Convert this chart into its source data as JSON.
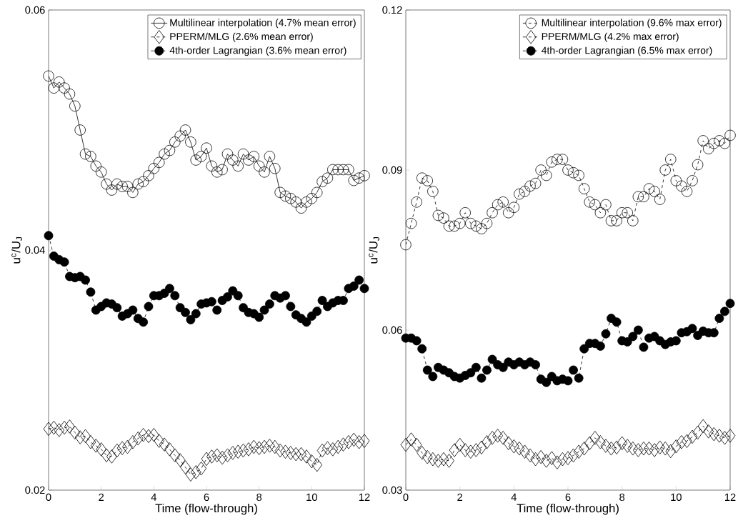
{
  "chart_data": [
    {
      "type": "line",
      "xlabel": "Time (flow-through)",
      "ylabel": "u$^{c}$/U$_{J}$",
      "x": [
        0,
        0.2,
        0.4,
        0.6,
        0.8,
        1.0,
        1.2,
        1.4,
        1.6,
        1.8,
        2.0,
        2.2,
        2.4,
        2.6,
        2.8,
        3.0,
        3.2,
        3.4,
        3.6,
        3.8,
        4.0,
        4.2,
        4.4,
        4.6,
        4.8,
        5.0,
        5.2,
        5.4,
        5.6,
        5.8,
        6.0,
        6.2,
        6.4,
        6.6,
        6.8,
        7.0,
        7.2,
        7.4,
        7.6,
        7.8,
        8.0,
        8.2,
        8.4,
        8.6,
        8.8,
        9.0,
        9.2,
        9.4,
        9.6,
        9.8,
        10.0,
        10.2,
        10.4,
        10.6,
        10.8,
        11.0,
        11.2,
        11.4,
        11.6,
        11.8,
        12.0
      ],
      "xlim": [
        0,
        12
      ],
      "xticks": [
        0,
        2,
        4,
        6,
        8,
        10,
        12
      ],
      "ylim": [
        0.02,
        0.06
      ],
      "yticks": [
        0.02,
        0.04,
        0.06
      ],
      "legend": "top right",
      "grid": false,
      "series": [
        {
          "name": "Multilinear interpolation (4.7% mean error)",
          "color": "#000000",
          "marker": "circle",
          "line_style": "solid",
          "values": [
            0.0545,
            0.0535,
            0.054,
            0.0535,
            0.053,
            0.052,
            0.05,
            0.048,
            0.0478,
            0.047,
            0.0465,
            0.0455,
            0.045,
            0.0455,
            0.0453,
            0.0453,
            0.0448,
            0.0455,
            0.0457,
            0.0462,
            0.0468,
            0.0473,
            0.048,
            0.0483,
            0.049,
            0.0495,
            0.05,
            0.049,
            0.0475,
            0.0478,
            0.0485,
            0.047,
            0.0465,
            0.0467,
            0.048,
            0.0475,
            0.047,
            0.048,
            0.0475,
            0.0478,
            0.047,
            0.0465,
            0.0478,
            0.0468,
            0.0448,
            0.0445,
            0.0443,
            0.044,
            0.0435,
            0.044,
            0.0443,
            0.0448,
            0.0457,
            0.046,
            0.0467,
            0.0467,
            0.0467,
            0.0467,
            0.0458,
            0.046,
            0.0462
          ]
        },
        {
          "name": "PPERM/MLG (2.6% mean error)",
          "color": "#000000",
          "marker": "diamond",
          "line_style": "dashed",
          "values": [
            0.0251,
            0.0252,
            0.025,
            0.0252,
            0.0253,
            0.0248,
            0.0244,
            0.0245,
            0.024,
            0.0237,
            0.0234,
            0.0229,
            0.0228,
            0.0233,
            0.0235,
            0.0236,
            0.024,
            0.0243,
            0.0246,
            0.0245,
            0.0246,
            0.0241,
            0.0238,
            0.0234,
            0.0229,
            0.0225,
            0.0219,
            0.0213,
            0.0215,
            0.0218,
            0.0226,
            0.0228,
            0.0229,
            0.0227,
            0.0229,
            0.0231,
            0.0232,
            0.0233,
            0.0234,
            0.0236,
            0.0235,
            0.0236,
            0.0237,
            0.0236,
            0.0233,
            0.0232,
            0.0231,
            0.023,
            0.023,
            0.0228,
            0.0224,
            0.0221,
            0.0233,
            0.0235,
            0.0234,
            0.0236,
            0.0238,
            0.024,
            0.0242,
            0.024,
            0.0241
          ]
        },
        {
          "name": "4th-order Lagrangian (3.6% mean error)",
          "color": "#000000",
          "marker": "filled circle",
          "line_style": "dashed",
          "values": [
            0.0412,
            0.0395,
            0.0392,
            0.039,
            0.0378,
            0.0377,
            0.0378,
            0.0375,
            0.0365,
            0.035,
            0.0353,
            0.0356,
            0.0355,
            0.0352,
            0.0345,
            0.0347,
            0.035,
            0.0343,
            0.034,
            0.0353,
            0.0362,
            0.0362,
            0.0364,
            0.0368,
            0.0362,
            0.0352,
            0.0348,
            0.0342,
            0.0347,
            0.0355,
            0.0356,
            0.0357,
            0.035,
            0.0358,
            0.0361,
            0.0366,
            0.0362,
            0.0352,
            0.0348,
            0.0347,
            0.0344,
            0.035,
            0.0355,
            0.0362,
            0.036,
            0.0362,
            0.0353,
            0.0346,
            0.0343,
            0.034,
            0.0345,
            0.0349,
            0.0358,
            0.0353,
            0.0356,
            0.0358,
            0.0358,
            0.0368,
            0.037,
            0.0375,
            0.0368
          ]
        }
      ]
    },
    {
      "type": "line",
      "xlabel": "Time (flow-through)",
      "ylabel": "u$^{c}$/U$_{J}$",
      "x": [
        0,
        0.2,
        0.4,
        0.6,
        0.8,
        1.0,
        1.2,
        1.4,
        1.6,
        1.8,
        2.0,
        2.2,
        2.4,
        2.6,
        2.8,
        3.0,
        3.2,
        3.4,
        3.6,
        3.8,
        4.0,
        4.2,
        4.4,
        4.6,
        4.8,
        5.0,
        5.2,
        5.4,
        5.6,
        5.8,
        6.0,
        6.2,
        6.4,
        6.6,
        6.8,
        7.0,
        7.2,
        7.4,
        7.6,
        7.8,
        8.0,
        8.2,
        8.4,
        8.6,
        8.8,
        9.0,
        9.2,
        9.4,
        9.6,
        9.8,
        10.0,
        10.2,
        10.4,
        10.6,
        10.8,
        11.0,
        11.2,
        11.4,
        11.6,
        11.8,
        12.0
      ],
      "xlim": [
        0,
        12
      ],
      "xticks": [
        0,
        2,
        4,
        6,
        8,
        10,
        12
      ],
      "ylim": [
        0.03,
        0.12
      ],
      "yticks": [
        0.03,
        0.06,
        0.09,
        0.12
      ],
      "legend": "top right",
      "grid": false,
      "series": [
        {
          "name": "Multilinear interpolation (9.6% max error)",
          "color": "#000000",
          "marker": "circle",
          "line_style": "dashed",
          "values": [
            0.076,
            0.08,
            0.084,
            0.0885,
            0.088,
            0.086,
            0.0815,
            0.081,
            0.0795,
            0.0795,
            0.08,
            0.082,
            0.08,
            0.0795,
            0.079,
            0.08,
            0.082,
            0.0835,
            0.084,
            0.082,
            0.083,
            0.0855,
            0.086,
            0.087,
            0.0875,
            0.09,
            0.089,
            0.0915,
            0.092,
            0.092,
            0.09,
            0.0895,
            0.089,
            0.0865,
            0.084,
            0.0835,
            0.082,
            0.0835,
            0.0805,
            0.0805,
            0.082,
            0.082,
            0.0805,
            0.085,
            0.085,
            0.0865,
            0.086,
            0.0845,
            0.09,
            0.092,
            0.088,
            0.087,
            0.086,
            0.088,
            0.091,
            0.0955,
            0.094,
            0.095,
            0.0955,
            0.095,
            0.0965
          ]
        },
        {
          "name": "PPERM/MLG (4.2% max error)",
          "color": "#000000",
          "marker": "diamond",
          "line_style": "dashed",
          "values": [
            0.0385,
            0.0395,
            0.0385,
            0.037,
            0.0362,
            0.0358,
            0.0355,
            0.0358,
            0.0355,
            0.0375,
            0.0385,
            0.0375,
            0.0372,
            0.0375,
            0.038,
            0.039,
            0.0398,
            0.0402,
            0.0398,
            0.0388,
            0.0382,
            0.0378,
            0.0372,
            0.0365,
            0.0358,
            0.0362,
            0.0355,
            0.036,
            0.0352,
            0.0358,
            0.036,
            0.0365,
            0.0372,
            0.0378,
            0.0388,
            0.0398,
            0.039,
            0.0383,
            0.0378,
            0.038,
            0.0388,
            0.0383,
            0.0378,
            0.0375,
            0.0378,
            0.0378,
            0.0375,
            0.038,
            0.0378,
            0.0373,
            0.0382,
            0.039,
            0.0392,
            0.04,
            0.0408,
            0.042,
            0.041,
            0.0405,
            0.0402,
            0.0398,
            0.0402
          ]
        },
        {
          "name": "4th-order Lagrangian (6.5% max error)",
          "color": "#000000",
          "marker": "filled circle",
          "line_style": "dashed",
          "values": [
            0.0585,
            0.0585,
            0.058,
            0.0565,
            0.0525,
            0.0513,
            0.053,
            0.0525,
            0.052,
            0.0513,
            0.051,
            0.0515,
            0.052,
            0.053,
            0.051,
            0.0525,
            0.0545,
            0.0535,
            0.053,
            0.054,
            0.0535,
            0.054,
            0.0535,
            0.054,
            0.0535,
            0.0508,
            0.0502,
            0.0513,
            0.0505,
            0.0508,
            0.0505,
            0.0525,
            0.051,
            0.0565,
            0.0575,
            0.0575,
            0.057,
            0.0593,
            0.0622,
            0.0615,
            0.058,
            0.0578,
            0.0588,
            0.06,
            0.0568,
            0.0585,
            0.0588,
            0.058,
            0.0573,
            0.0578,
            0.058,
            0.0595,
            0.0597,
            0.0603,
            0.059,
            0.0598,
            0.0595,
            0.0595,
            0.0622,
            0.0635,
            0.065
          ]
        }
      ]
    }
  ]
}
